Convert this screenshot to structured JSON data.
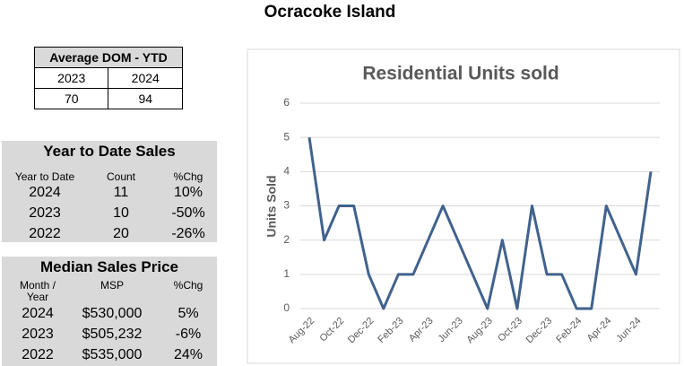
{
  "title": "Ocracoke Island",
  "dom_table": {
    "title": "Average DOM - YTD",
    "header": [
      "2023",
      "2024"
    ],
    "row": [
      70,
      94
    ]
  },
  "ytd_table": {
    "title": "Year to Date Sales",
    "header": [
      "Year to Date",
      "Count",
      "%Chg"
    ],
    "rows": [
      [
        "2024",
        11,
        "10%"
      ],
      [
        "2023",
        10,
        "-50%"
      ],
      [
        "2022",
        20,
        "-26%"
      ]
    ]
  },
  "msp_table": {
    "title": "Median Sales Price",
    "header": [
      "Month / Year",
      "MSP",
      "%Chg"
    ],
    "rows": [
      [
        "2024",
        "$530,000",
        "5%"
      ],
      [
        "2023",
        "$505,232",
        "-6%"
      ],
      [
        "2022",
        "$535,000",
        "24%"
      ]
    ]
  },
  "chart_data": {
    "type": "line",
    "title": "Residential Units sold",
    "ylabel": "Units Sold",
    "categories": [
      "Aug-22",
      null,
      "Oct-22",
      null,
      "Dec-22",
      null,
      "Feb-23",
      null,
      "Apr-23",
      null,
      "Jun-23",
      null,
      "Aug-23",
      null,
      "Oct-23",
      null,
      "Dec-23",
      null,
      "Feb-24",
      null,
      "Apr-24",
      null,
      "Jun-24",
      null
    ],
    "values": [
      5,
      2,
      3,
      3,
      1,
      0,
      1,
      1,
      2,
      3,
      2,
      1,
      0,
      2,
      0,
      3,
      1,
      1,
      0,
      0,
      3,
      2,
      1,
      4
    ],
    "color": "#41628d",
    "ylim": [
      0,
      6
    ],
    "yticks": [
      0,
      1,
      2,
      3,
      4,
      5,
      6
    ],
    "grid": true
  }
}
